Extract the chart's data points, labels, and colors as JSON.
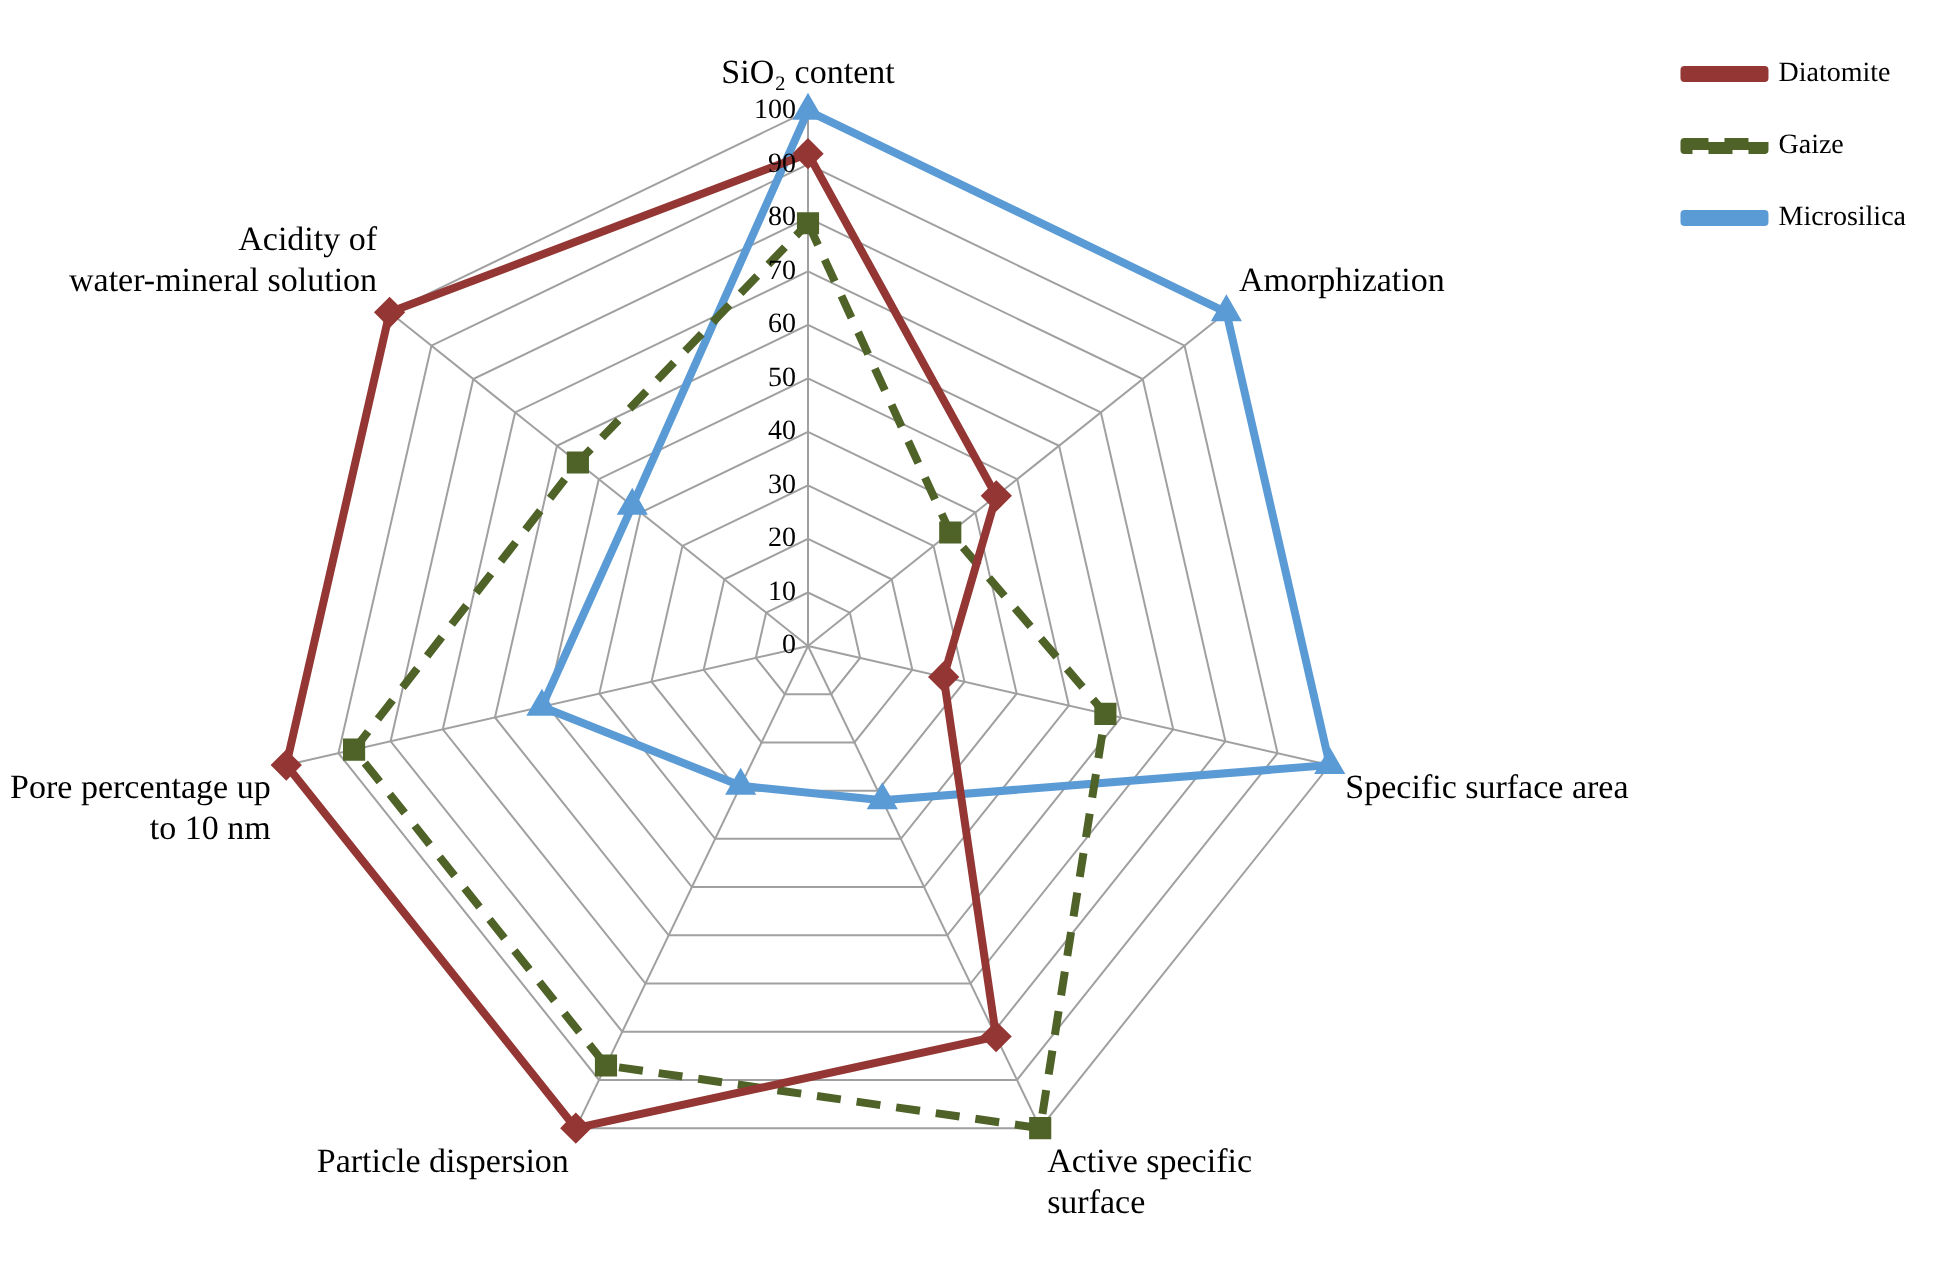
{
  "chart_data": {
    "type": "radar",
    "categories": [
      "SiO₂ content",
      "Amorphization",
      "Specific surface area",
      "Active specific surface",
      "Particle dispersion",
      "Pore percentage up to 10 nm",
      "Acidity of water-mineral solution"
    ],
    "series": [
      {
        "name": "Diatomite",
        "color": "#943634",
        "marker": "diamond",
        "line_style": "solid",
        "values": [
          92,
          45,
          26,
          81,
          100,
          100,
          100
        ]
      },
      {
        "name": "Gaize",
        "color": "#4f6228",
        "marker": "square",
        "line_style": "dashed",
        "values": [
          79,
          34,
          57,
          100,
          87,
          87,
          55
        ]
      },
      {
        "name": "Microsilica",
        "color": "#5b9bd5",
        "marker": "triangle",
        "line_style": "solid",
        "values": [
          100,
          100,
          100,
          32,
          29,
          51,
          42
        ]
      }
    ],
    "ylim": [
      0,
      100
    ],
    "yticks": [
      0,
      10,
      20,
      30,
      40,
      50,
      60,
      70,
      80,
      90,
      100
    ],
    "grid": true,
    "legend": "top right"
  }
}
